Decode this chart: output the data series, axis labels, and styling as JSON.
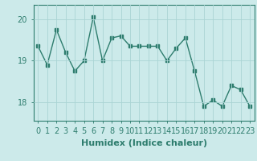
{
  "x": [
    0,
    1,
    2,
    3,
    4,
    5,
    6,
    7,
    8,
    9,
    10,
    11,
    12,
    13,
    14,
    15,
    16,
    17,
    18,
    19,
    20,
    21,
    22,
    23
  ],
  "y": [
    19.35,
    18.9,
    19.75,
    19.2,
    18.75,
    19.0,
    20.05,
    19.0,
    19.55,
    19.6,
    19.35,
    19.35,
    19.35,
    19.35,
    19.0,
    19.3,
    19.55,
    18.75,
    17.9,
    18.05,
    17.9,
    18.4,
    18.3,
    17.9
  ],
  "line_color": "#2e7d6e",
  "bg_color": "#cceaea",
  "grid_color": "#aad4d4",
  "xlabel": "Humidex (Indice chaleur)",
  "yticks": [
    18,
    19,
    20
  ],
  "xticks": [
    0,
    1,
    2,
    3,
    4,
    5,
    6,
    7,
    8,
    9,
    10,
    11,
    12,
    13,
    14,
    15,
    16,
    17,
    18,
    19,
    20,
    21,
    22,
    23
  ],
  "ylim": [
    17.55,
    20.35
  ],
  "xlim": [
    -0.5,
    23.5
  ],
  "marker": "s",
  "markersize": 2.5,
  "linewidth": 1.0,
  "xlabel_fontsize": 8,
  "tick_fontsize": 7,
  "label_color": "#2e7d6e"
}
